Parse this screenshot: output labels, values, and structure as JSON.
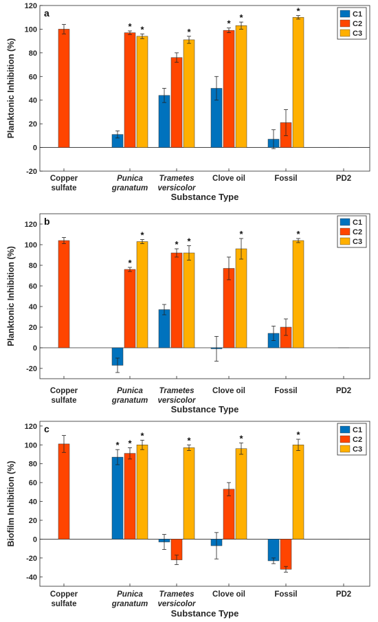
{
  "chart_data": [
    {
      "panel_label": "a",
      "type": "bar",
      "ylabel": "Planktonic Inhibition (%)",
      "xlabel": "Substance Type",
      "ylim": [
        -20,
        120
      ],
      "yticks": [
        -20,
        0,
        20,
        40,
        60,
        80,
        100,
        120
      ],
      "categories": [
        [
          "Copper",
          "sulfate"
        ],
        [
          "Punica",
          "granatum"
        ],
        [
          "Trametes",
          "versicolor"
        ],
        [
          "Clove oil"
        ],
        [
          "Fossil"
        ],
        [
          "PD2"
        ]
      ],
      "category_italic": [
        false,
        true,
        true,
        false,
        false,
        false
      ],
      "legend_position": "top-right",
      "series": [
        {
          "name": "C1",
          "color": "#0072BD",
          "values": [
            null,
            11,
            44,
            50,
            7,
            null
          ],
          "errors": [
            null,
            3,
            6,
            10,
            8,
            null
          ],
          "significant": [
            false,
            false,
            false,
            false,
            false,
            false
          ]
        },
        {
          "name": "C2",
          "color": "#FF4500",
          "values": [
            100,
            97,
            76,
            99,
            21,
            0
          ],
          "errors": [
            4,
            1.5,
            4,
            2,
            11,
            0
          ],
          "significant": [
            false,
            true,
            false,
            true,
            false,
            false
          ]
        },
        {
          "name": "C3",
          "color": "#FFB000",
          "values": [
            null,
            94,
            91,
            103,
            110,
            null
          ],
          "errors": [
            null,
            2,
            3,
            3,
            1.5,
            null
          ],
          "significant": [
            false,
            true,
            true,
            true,
            true,
            false
          ]
        }
      ]
    },
    {
      "panel_label": "b",
      "type": "bar",
      "ylabel": "Planktonic Inhibition (%)",
      "xlabel": "Substance Type",
      "ylim": [
        -30,
        130
      ],
      "yticks": [
        -20,
        0,
        20,
        40,
        60,
        80,
        100,
        120
      ],
      "categories": [
        [
          "Copper",
          "sulfate"
        ],
        [
          "Punica",
          "granatum"
        ],
        [
          "Trametes",
          "versicolor"
        ],
        [
          "Clove oil"
        ],
        [
          "Fossil"
        ],
        [
          "PD2"
        ]
      ],
      "category_italic": [
        false,
        true,
        true,
        false,
        false,
        false
      ],
      "legend_position": "top-right",
      "series": [
        {
          "name": "C1",
          "color": "#0072BD",
          "values": [
            null,
            -17,
            37,
            -1,
            14,
            null
          ],
          "errors": [
            null,
            7,
            5,
            12,
            7,
            null
          ],
          "significant": [
            false,
            false,
            false,
            false,
            false,
            false
          ]
        },
        {
          "name": "C2",
          "color": "#FF4500",
          "values": [
            104,
            76,
            92,
            77,
            20,
            0
          ],
          "errors": [
            3,
            2,
            4,
            11,
            8,
            0
          ],
          "significant": [
            false,
            true,
            true,
            false,
            false,
            false
          ]
        },
        {
          "name": "C3",
          "color": "#FFB000",
          "values": [
            null,
            103,
            92,
            96,
            104,
            null
          ],
          "errors": [
            null,
            2,
            7,
            10,
            2,
            null
          ],
          "significant": [
            false,
            true,
            true,
            true,
            true,
            false
          ]
        }
      ]
    },
    {
      "panel_label": "c",
      "type": "bar",
      "ylabel": "Biofilm Inhibition (%)",
      "xlabel": "Substance Type",
      "ylim": [
        -50,
        125
      ],
      "yticks": [
        -40,
        -20,
        0,
        20,
        40,
        60,
        80,
        100,
        120
      ],
      "categories": [
        [
          "Copper",
          "sulfate"
        ],
        [
          "Punica",
          "granatum"
        ],
        [
          "Trametes",
          "versicolor"
        ],
        [
          "Clove oil"
        ],
        [
          "Fossil"
        ],
        [
          "PD2"
        ]
      ],
      "category_italic": [
        false,
        true,
        true,
        false,
        false,
        false
      ],
      "legend_position": "top-right",
      "series": [
        {
          "name": "C1",
          "color": "#0072BD",
          "values": [
            null,
            87,
            -3,
            -7,
            -23,
            null
          ],
          "errors": [
            null,
            8,
            8,
            14,
            3,
            null
          ],
          "significant": [
            false,
            true,
            false,
            false,
            false,
            false
          ]
        },
        {
          "name": "C2",
          "color": "#FF4500",
          "values": [
            101,
            91,
            -22,
            53,
            -32,
            0
          ],
          "errors": [
            9,
            6,
            5,
            7,
            3,
            0
          ],
          "significant": [
            false,
            true,
            false,
            false,
            false,
            false
          ]
        },
        {
          "name": "C3",
          "color": "#FFB000",
          "values": [
            null,
            100,
            97,
            96,
            100,
            null
          ],
          "errors": [
            null,
            5,
            3,
            6,
            6,
            null
          ],
          "significant": [
            false,
            true,
            true,
            true,
            true,
            false
          ]
        }
      ]
    }
  ],
  "significance_marker": "*"
}
